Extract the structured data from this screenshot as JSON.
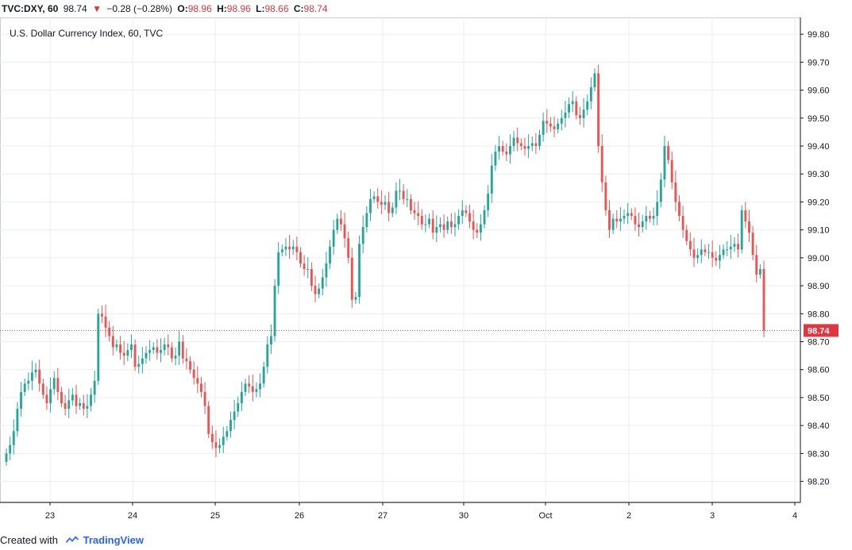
{
  "header": {
    "symbol": "TVC:DXY, 60",
    "last": "98.74",
    "change": "−0.28 (−0.28%)",
    "open_label": "O:",
    "open": "98.96",
    "high_label": "H:",
    "high": "98.96",
    "low_label": "L:",
    "low": "98.66",
    "close_label": "C:",
    "close": "98.74"
  },
  "footer": {
    "created_with": "Created with",
    "brand": "TradingView"
  },
  "colors": {
    "up": "#26a69a",
    "down": "#ef5350",
    "grid": "#e9edf2",
    "axis": "#131722",
    "price_line": "#e0363e"
  },
  "chart_data": {
    "type": "candlestick",
    "title": "U.S. Dollar Currency Index, 60, TVC",
    "y_ticks": [
      "98.20",
      "98.30",
      "98.40",
      "98.50",
      "98.60",
      "98.70",
      "98.80",
      "98.90",
      "99.00",
      "99.10",
      "99.20",
      "99.30",
      "99.40",
      "99.50",
      "99.60",
      "99.70",
      "99.80"
    ],
    "ylim": [
      98.125,
      99.86
    ],
    "x_ticks": [
      "23",
      "24",
      "25",
      "26",
      "27",
      "30",
      "Oct",
      "2",
      "3",
      "4"
    ],
    "last_price": "98.74",
    "grid": true,
    "series_close": [
      98.3,
      98.33,
      98.38,
      98.46,
      98.52,
      98.55,
      98.56,
      98.59,
      98.6,
      98.55,
      98.51,
      98.48,
      98.53,
      98.57,
      98.52,
      98.48,
      98.46,
      98.49,
      98.51,
      98.47,
      98.48,
      98.46,
      98.47,
      98.51,
      98.56,
      98.8,
      98.79,
      98.75,
      98.72,
      98.68,
      98.69,
      98.66,
      98.65,
      98.67,
      98.69,
      98.61,
      98.62,
      98.64,
      98.66,
      98.67,
      98.68,
      98.66,
      98.67,
      98.69,
      98.68,
      98.64,
      98.65,
      98.7,
      98.64,
      98.63,
      98.6,
      98.57,
      98.55,
      98.52,
      98.47,
      98.37,
      98.34,
      98.32,
      98.33,
      98.36,
      98.38,
      98.42,
      98.45,
      98.48,
      98.52,
      98.55,
      98.54,
      98.52,
      98.53,
      98.55,
      98.61,
      98.69,
      98.72,
      98.9,
      99.02,
      99.03,
      99.04,
      99.03,
      99.04,
      99.02,
      98.98,
      98.96,
      98.96,
      98.9,
      98.87,
      98.89,
      98.93,
      98.98,
      99.04,
      99.1,
      99.14,
      99.12,
      99.07,
      99.0,
      98.85,
      98.86,
      99.05,
      99.11,
      99.16,
      99.21,
      99.22,
      99.2,
      99.19,
      99.2,
      99.16,
      99.18,
      99.24,
      99.24,
      99.21,
      99.21,
      99.17,
      99.16,
      99.15,
      99.12,
      99.12,
      99.14,
      99.09,
      99.11,
      99.12,
      99.1,
      99.13,
      99.11,
      99.12,
      99.15,
      99.17,
      99.16,
      99.13,
      99.1,
      99.09,
      99.12,
      99.17,
      99.23,
      99.33,
      99.38,
      99.4,
      99.38,
      99.37,
      99.4,
      99.43,
      99.41,
      99.4,
      99.39,
      99.4,
      99.41,
      99.4,
      99.44,
      99.49,
      99.48,
      99.47,
      99.46,
      99.48,
      99.5,
      99.52,
      99.55,
      99.56,
      99.51,
      99.5,
      99.53,
      99.56,
      99.61,
      99.66,
      99.4,
      99.27,
      99.17,
      99.1,
      99.14,
      99.13,
      99.14,
      99.15,
      99.16,
      99.15,
      99.12,
      99.11,
      99.13,
      99.15,
      99.14,
      99.15,
      99.2,
      99.28,
      99.4,
      99.35,
      99.27,
      99.2,
      99.15,
      99.1,
      99.06,
      99.03,
      99.0,
      99.01,
      99.03,
      99.02,
      99.02,
      99.0,
      98.99,
      99.01,
      99.03,
      99.03,
      99.04,
      99.05,
      99.03,
      99.17,
      99.13,
      99.09,
      99.01,
      98.94,
      98.96,
      98.74
    ]
  }
}
